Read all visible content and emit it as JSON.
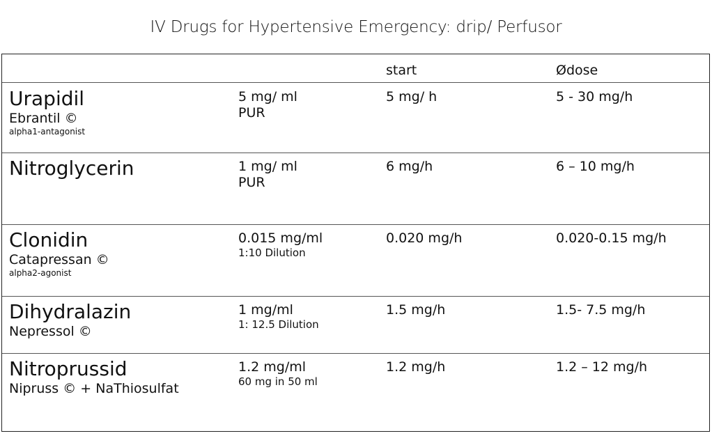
{
  "title": "IV Drugs for Hypertensive Emergency: drip/ Perfusor",
  "table": {
    "headers": [
      "",
      "",
      "start",
      "Ødose"
    ],
    "rows": [
      {
        "name": "Urapidil",
        "brand": "Ebrantil ©",
        "class": "alpha1-antagonist",
        "conc": "5 mg/ ml",
        "conc_note": "PUR",
        "start": "5 mg/ h",
        "dose": "5 - 30 mg/h"
      },
      {
        "name": "Nitroglycerin",
        "brand": "",
        "class": "",
        "conc": "1 mg/ ml",
        "conc_note": "PUR",
        "start": "6 mg/h",
        "dose": "6 – 10 mg/h"
      },
      {
        "name": "Clonidin",
        "brand": "Catapressan ©",
        "class": "alpha2-agonist",
        "conc": "0.015 mg/ml",
        "conc_note": "1:10 Dilution",
        "start": "0.020 mg/h",
        "dose": "0.020-0.15 mg/h"
      },
      {
        "name": "Dihydralazin",
        "brand": "Nepressol ©",
        "class": "",
        "conc": "1 mg/ml",
        "conc_note": "1: 12.5 Dilution",
        "start": "1.5 mg/h",
        "dose": "1.5- 7.5 mg/h"
      },
      {
        "name": "Nitroprussid",
        "brand": "Nipruss © + NaThiosulfat",
        "class": "",
        "conc": "1.2 mg/ml",
        "conc_note": "60 mg in 50 ml",
        "start": "1.2 mg/h",
        "dose": "1.2 – 12 mg/h"
      }
    ]
  }
}
